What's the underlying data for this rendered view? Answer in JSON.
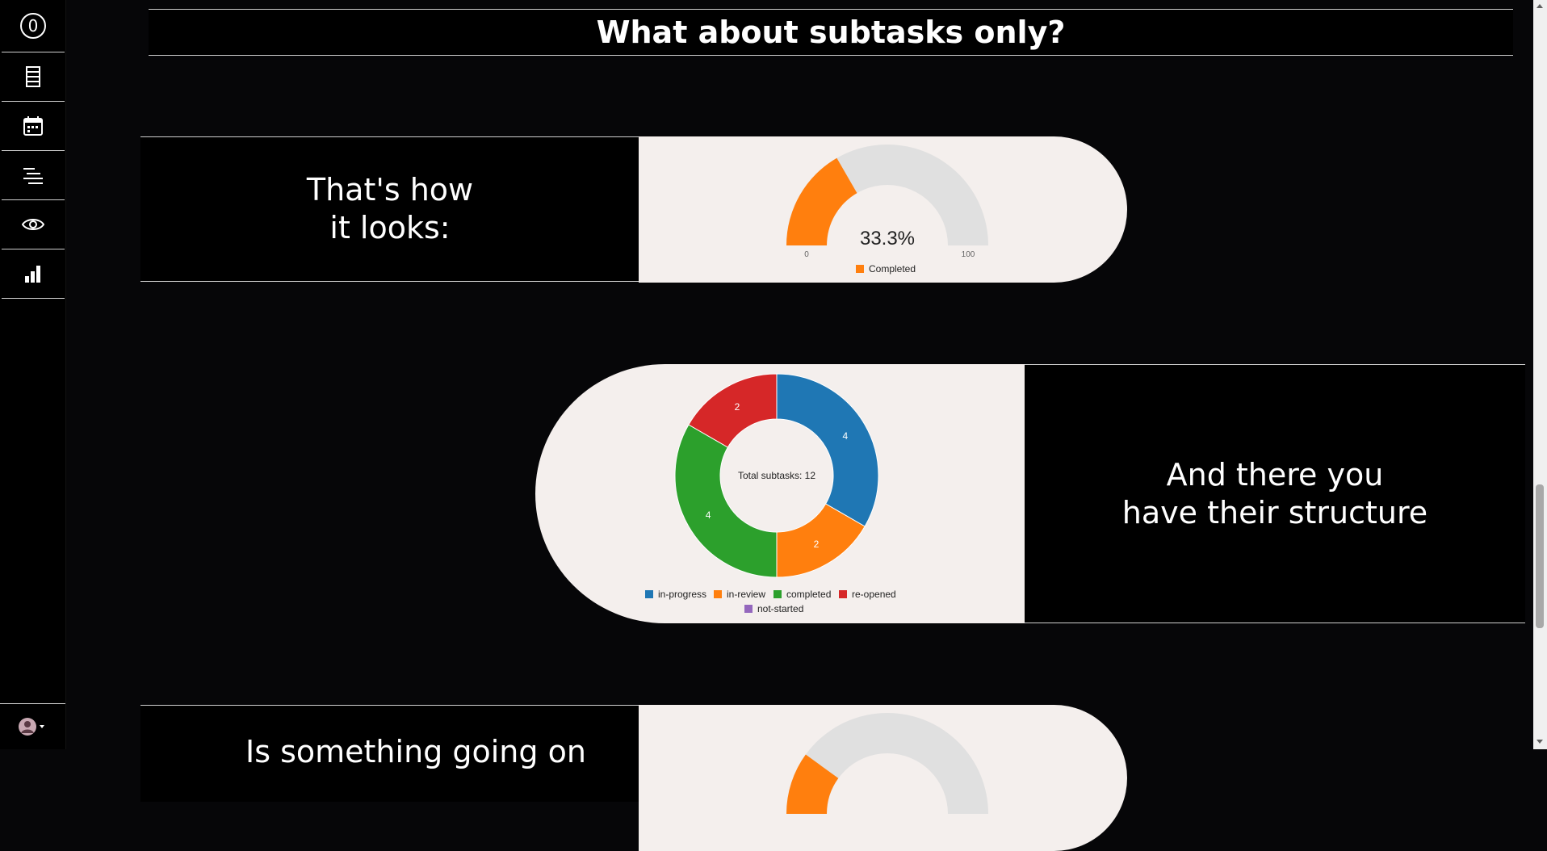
{
  "sidebar": {
    "items": [
      {
        "name": "logo-zero-icon",
        "label": "0"
      },
      {
        "name": "list-icon"
      },
      {
        "name": "calendar-icon"
      },
      {
        "name": "lines-icon"
      },
      {
        "name": "eye-icon"
      },
      {
        "name": "bar-chart-icon"
      }
    ],
    "user_icon": "user-avatar-icon"
  },
  "header": {
    "title": "What about subtasks only?"
  },
  "section1": {
    "text_line1": "That's how",
    "text_line2": "it looks:",
    "gauge": {
      "value_label": "33.3%",
      "min_label": "0",
      "max_label": "100",
      "legend": "Completed"
    }
  },
  "section2": {
    "text_line1": "And there you",
    "text_line2": "have their structure",
    "center_label": "Total subtasks: 12",
    "legend": [
      "in-progress",
      "in-review",
      "completed",
      "re-opened",
      "not-started"
    ]
  },
  "section3": {
    "text_line1": "Is something going on"
  },
  "colors": {
    "orange": "#ff7f0e",
    "blue": "#1f77b4",
    "green": "#2ca02c",
    "red": "#d62728",
    "purple": "#9467bd",
    "gauge_track": "#e0e0e0",
    "panel": "#f4efed"
  },
  "chart_data": [
    {
      "type": "gauge",
      "value": 33.3,
      "range": [
        0,
        100
      ],
      "series": [
        {
          "name": "Completed",
          "value": 33.3
        }
      ]
    },
    {
      "type": "pie",
      "categories": [
        "in-progress",
        "in-review",
        "completed",
        "re-opened",
        "not-started"
      ],
      "values": [
        4,
        2,
        4,
        2,
        0
      ],
      "total": 12,
      "legend": "bottom"
    }
  ]
}
